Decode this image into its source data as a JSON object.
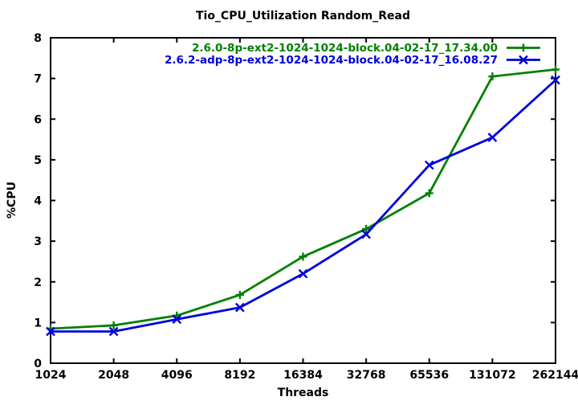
{
  "chart_data": {
    "type": "line",
    "title": "Tio_CPU_Utilization Random_Read",
    "xlabel": "Threads",
    "ylabel": "%CPU",
    "categories": [
      "1024",
      "2048",
      "4096",
      "8192",
      "16384",
      "32768",
      "65536",
      "131072",
      "262144"
    ],
    "yticks": [
      "0",
      "1",
      "2",
      "3",
      "4",
      "5",
      "6",
      "7",
      "8"
    ],
    "ylim": [
      0,
      8
    ],
    "grid": false,
    "legend_position": "top-right-inside",
    "background_color": "#ffffff",
    "border_color": "#000000",
    "text_color": "#000000",
    "series": [
      {
        "name": "2.6.0-8p-ext2-1024-1024-block.04-02-17_17.34.00",
        "color": "#008000",
        "marker": "plus",
        "values": [
          0.85,
          0.93,
          1.17,
          1.68,
          2.62,
          3.3,
          4.18,
          7.05,
          7.22
        ]
      },
      {
        "name": "2.6.2-adp-8p-ext2-1024-1024-block.04-02-17_16.08.27",
        "color": "#0000dd",
        "marker": "times",
        "values": [
          0.78,
          0.78,
          1.08,
          1.37,
          2.2,
          3.17,
          4.87,
          5.55,
          6.96
        ]
      }
    ]
  }
}
